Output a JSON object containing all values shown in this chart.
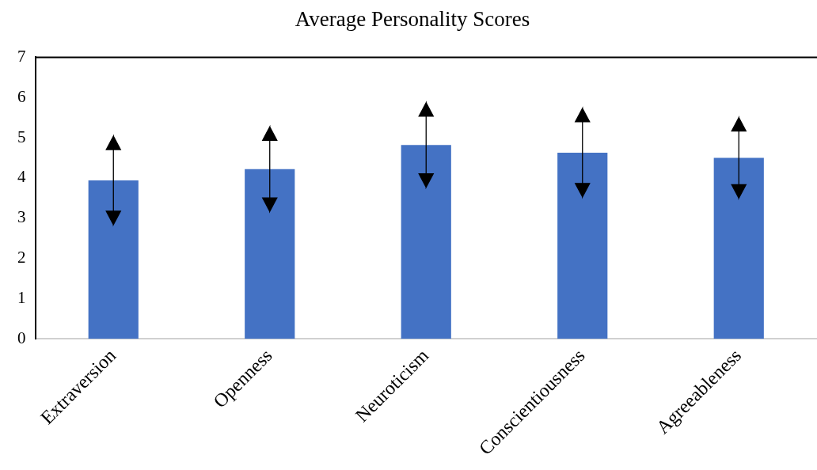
{
  "chart_data": {
    "type": "bar",
    "title": "Average Personality Scores",
    "categories": [
      "Extraversion",
      "Openness",
      "Neuroticism",
      "Conscientiousness",
      "Agreeableness"
    ],
    "values": [
      3.94,
      4.22,
      4.82,
      4.63,
      4.5
    ],
    "errors": [
      1.1,
      1.05,
      1.05,
      1.1,
      1.0
    ],
    "color": "#4472c4",
    "ylim": [
      0,
      7
    ],
    "yticks": [
      0,
      1,
      2,
      3,
      4,
      5,
      6,
      7
    ],
    "grid": false,
    "legend": false
  }
}
